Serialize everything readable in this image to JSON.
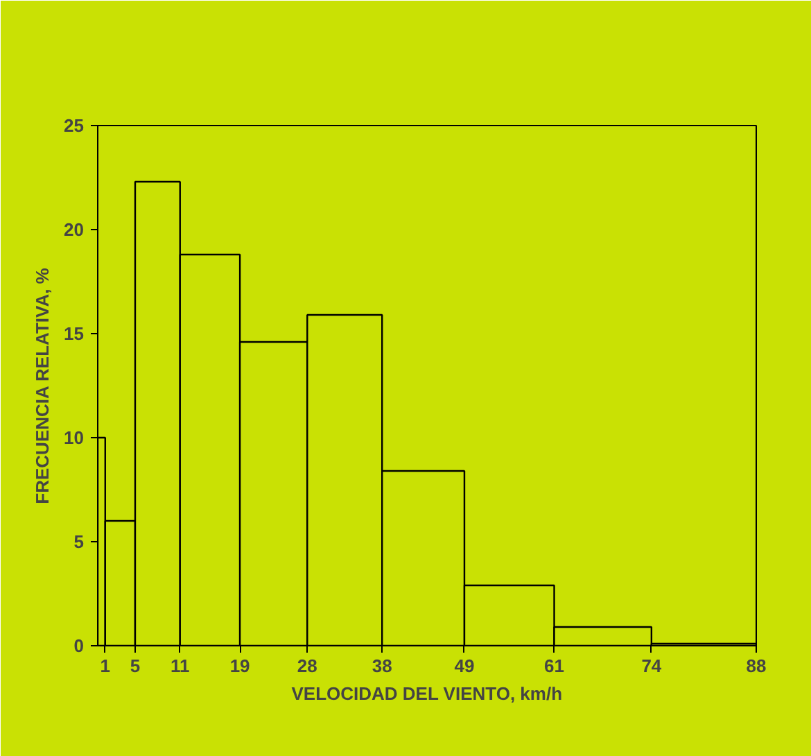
{
  "chart_data": {
    "type": "histogram",
    "xlabel": "VELOCIDAD DEL VIENTO, km/h",
    "ylabel": "FRECUENCIA RELATIVA, %",
    "bins": [
      0,
      1,
      5,
      11,
      19,
      28,
      38,
      49,
      61,
      74,
      88
    ],
    "values": [
      10,
      6,
      22.3,
      18.8,
      14.6,
      15.9,
      8.4,
      2.9,
      0.9,
      0.1
    ],
    "color": "#c9e104",
    "xlim": [
      0,
      88
    ],
    "xticks": [
      1,
      5,
      11,
      19,
      28,
      38,
      49,
      61,
      74,
      88
    ],
    "ylim": [
      0,
      25
    ],
    "yticks": [
      0,
      5,
      10,
      15,
      20,
      25
    ],
    "grid": false
  }
}
